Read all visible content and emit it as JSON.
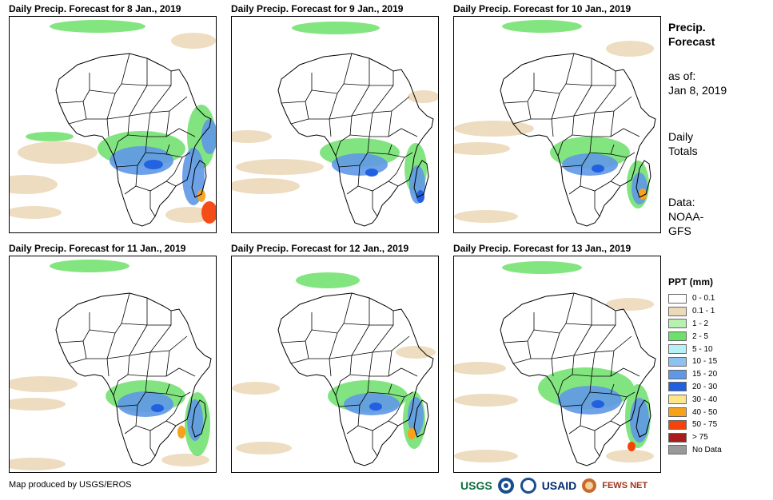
{
  "panels": [
    {
      "title": "Daily Precip. Forecast for 8 Jan., 2019"
    },
    {
      "title": "Daily Precip. Forecast for 9 Jan., 2019"
    },
    {
      "title": "Daily Precip. Forecast for 10 Jan., 2019"
    },
    {
      "title": "Daily Precip. Forecast for 11 Jan., 2019"
    },
    {
      "title": "Daily Precip. Forecast for 12 Jan., 2019"
    },
    {
      "title": "Daily Precip. Forecast for 13 Jan., 2019"
    }
  ],
  "side": {
    "title_line1": "Precip.",
    "title_line2": "Forecast",
    "asof_label": "as of:",
    "asof_date": "Jan 8, 2019",
    "totals_line1": "Daily",
    "totals_line2": "Totals",
    "data_line1": "Data:",
    "data_line2": "NOAA-",
    "data_line3": "GFS"
  },
  "legend": {
    "title": "PPT (mm)",
    "items": [
      {
        "label": "0 - 0.1",
        "color": "#ffffff"
      },
      {
        "label": "0.1 - 1",
        "color": "#ecd9b9"
      },
      {
        "label": "1 - 2",
        "color": "#b8f0b0"
      },
      {
        "label": "2 - 5",
        "color": "#6de06a"
      },
      {
        "label": "5 - 10",
        "color": "#b6f1f7"
      },
      {
        "label": "10 - 15",
        "color": "#8cc2f0"
      },
      {
        "label": "15 - 20",
        "color": "#5f98e6"
      },
      {
        "label": "20 - 30",
        "color": "#2160e0"
      },
      {
        "label": "30 - 40",
        "color": "#fde588"
      },
      {
        "label": "40 - 50",
        "color": "#f7a21b"
      },
      {
        "label": "50 - 75",
        "color": "#f5430c"
      },
      {
        "label": "> 75",
        "color": "#a81c1c"
      },
      {
        "label": "No Data",
        "color": "#999999"
      }
    ]
  },
  "credit": "Map produced by USGS/EROS",
  "logos": {
    "usgs": "USGS",
    "noaa": "NOAA",
    "usaid": "USAID",
    "fewsnet": "FEWS NET"
  },
  "colors": {
    "tan": "#ecd9b9",
    "light_green": "#b8f0b0",
    "green": "#6de06a",
    "blue": "#5f98e6",
    "dark_blue": "#2160e0",
    "orange": "#f7a21b",
    "red": "#f5430c"
  }
}
